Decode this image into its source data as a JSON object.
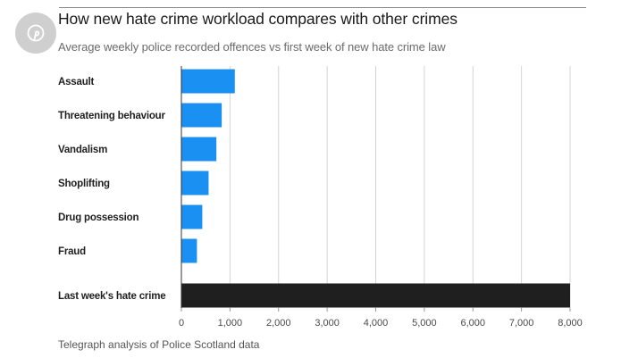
{
  "header": {
    "title": "How new hate crime workload compares with other crimes",
    "subtitle": "Average weekly police recorded offences vs first week of new hate crime law"
  },
  "footer": {
    "source": "Telegraph analysis of Police Scotland data"
  },
  "share": {
    "icon": "pinterest-icon"
  },
  "colors": {
    "standard_bar": "#1a90f2",
    "highlight_bar": "#1f1f1f",
    "gridline": "#d4d4d4",
    "axis": "#333333"
  },
  "chart_data": {
    "type": "bar",
    "orientation": "horizontal",
    "title": "How new hate crime workload compares with other crimes",
    "subtitle": "Average weekly police recorded offences vs first week of new hate crime law",
    "categories": [
      "Assault",
      "Threatening behaviour",
      "Vandalism",
      "Shoplifting",
      "Drug possession",
      "Fraud",
      "Last week's hate crime"
    ],
    "values": [
      1100,
      830,
      720,
      560,
      430,
      320,
      8000
    ],
    "highlight": [
      "Last week's hate crime"
    ],
    "xlim": [
      0,
      8000
    ],
    "xticks": [
      "0",
      "1,000",
      "2,000",
      "3,000",
      "4,000",
      "5,000",
      "6,000",
      "7,000",
      "8,000"
    ],
    "xtick_values": [
      0,
      1000,
      2000,
      3000,
      4000,
      5000,
      6000,
      7000,
      8000
    ],
    "grid": "vertical",
    "legend": "none"
  }
}
